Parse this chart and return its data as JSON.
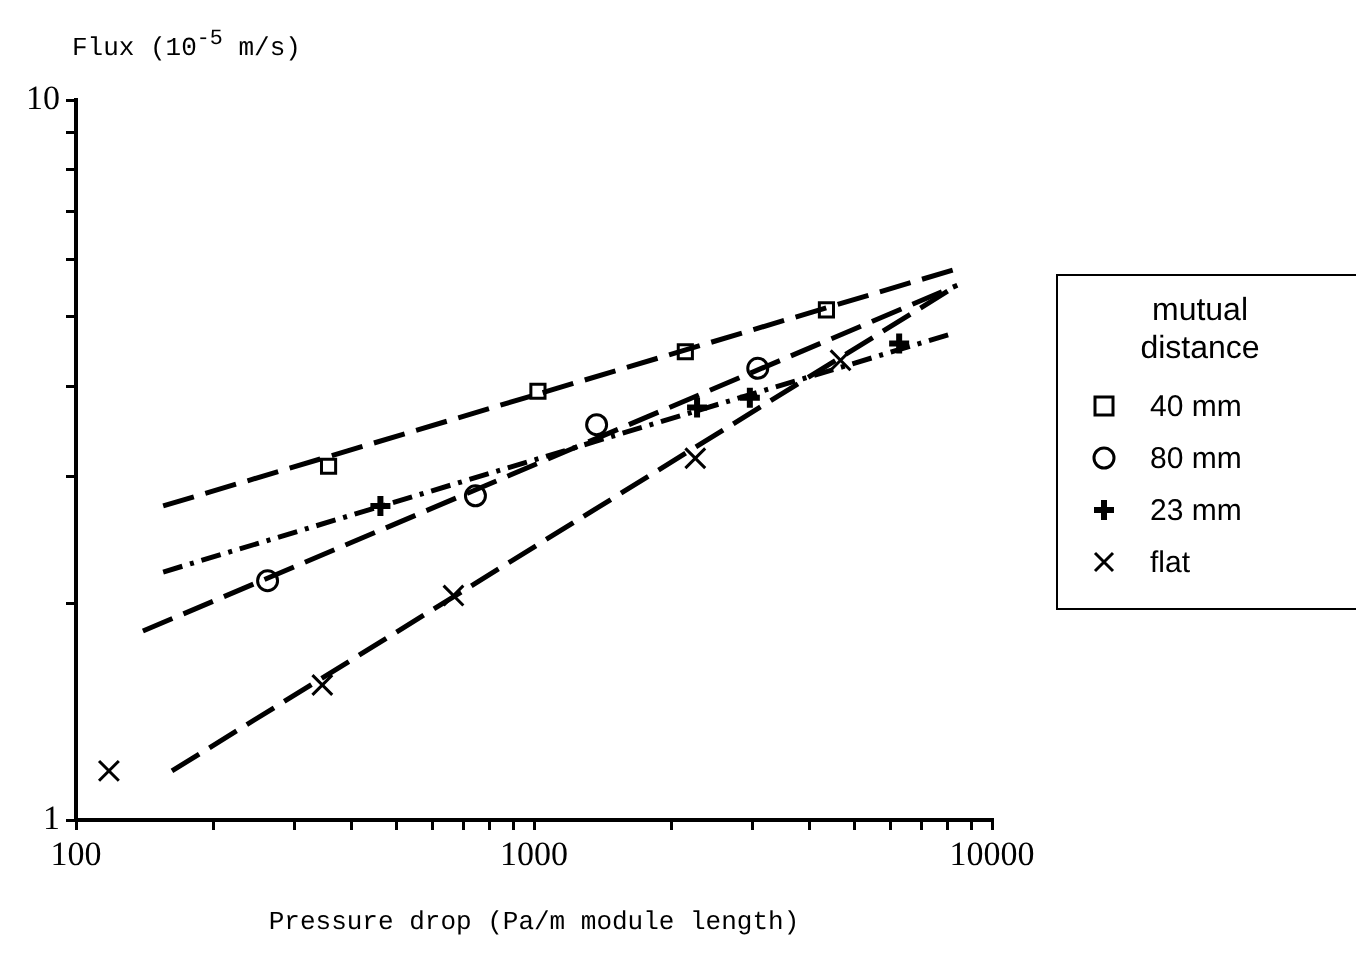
{
  "chart_data": {
    "type": "scatter",
    "xlabel": "Pressure drop (Pa/m module length)",
    "ylabel": "Flux (10$^{-5}$ m/s)",
    "legend_title": "mutual distance",
    "legend": "right",
    "log": "xy",
    "grid": false,
    "xlim": [
      100,
      10000
    ],
    "ylim": [
      1,
      10
    ],
    "xticks": [
      100,
      {
        "value": 200,
        "label": null
      },
      {
        "value": 300,
        "label": null
      },
      {
        "value": 400,
        "label": null
      },
      {
        "value": 500,
        "label": null
      },
      {
        "value": 600,
        "label": null
      },
      {
        "value": 700,
        "label": null
      },
      {
        "value": 800,
        "label": null
      },
      {
        "value": 900,
        "label": null
      },
      1000,
      {
        "value": 2000,
        "label": null
      },
      {
        "value": 3000,
        "label": null
      },
      {
        "value": 4000,
        "label": null
      },
      {
        "value": 5000,
        "label": null
      },
      {
        "value": 6000,
        "label": null
      },
      {
        "value": 7000,
        "label": null
      },
      {
        "value": 8000,
        "label": null
      },
      {
        "value": 9000,
        "label": null
      },
      10000
    ],
    "yticks": [
      1,
      {
        "value": 2,
        "label": null
      },
      {
        "value": 3,
        "label": null
      },
      {
        "value": 4,
        "label": null
      },
      {
        "value": 5,
        "label": null
      },
      {
        "value": 6,
        "label": null
      },
      {
        "value": 7,
        "label": null
      },
      {
        "value": 8,
        "label": null
      },
      {
        "value": 9,
        "label": null
      },
      10
    ],
    "series": [
      {
        "name": "40 mm",
        "marker": "square",
        "color": "#000000",
        "x": [
          356,
          1020,
          2140,
          4350
        ],
        "values": [
          3.1,
          3.94,
          4.47,
          5.11
        ]
      },
      {
        "name": "80 mm",
        "marker": "circle",
        "color": "#000000",
        "x": [
          262,
          745,
          1370,
          3080
        ],
        "values": [
          2.15,
          2.82,
          3.54,
          4.24
        ]
      },
      {
        "name": "23 mm",
        "marker": "plus",
        "color": "#000000",
        "x": [
          462,
          2270,
          2960,
          6270
        ],
        "values": [
          2.73,
          3.74,
          3.86,
          4.59
        ]
      },
      {
        "name": "flat",
        "marker": "cross",
        "color": "#000000",
        "x": [
          118,
          345,
          667,
          2250,
          4670
        ],
        "values": [
          1.17,
          1.54,
          2.05,
          3.18,
          4.35
        ]
      },
      {
        "type": "line",
        "marker": "none",
        "line_style": "dashed",
        "color": "#000000",
        "x": [
          155,
          8400
        ],
        "values": [
          2.73,
          5.83
        ]
      },
      {
        "type": "line",
        "marker": "none",
        "line_style": "dashed",
        "color": "#000000",
        "x": [
          140,
          8400
        ],
        "values": [
          1.83,
          5.53
        ]
      },
      {
        "type": "line",
        "marker": "none",
        "line_style": "dashdot",
        "color": "#000000",
        "x": [
          155,
          8300
        ],
        "values": [
          2.21,
          4.75
        ]
      },
      {
        "type": "line",
        "marker": "none",
        "line_style": "dashed",
        "color": "#000000",
        "x": [
          162,
          8400
        ],
        "values": [
          1.17,
          5.53
        ]
      }
    ]
  }
}
